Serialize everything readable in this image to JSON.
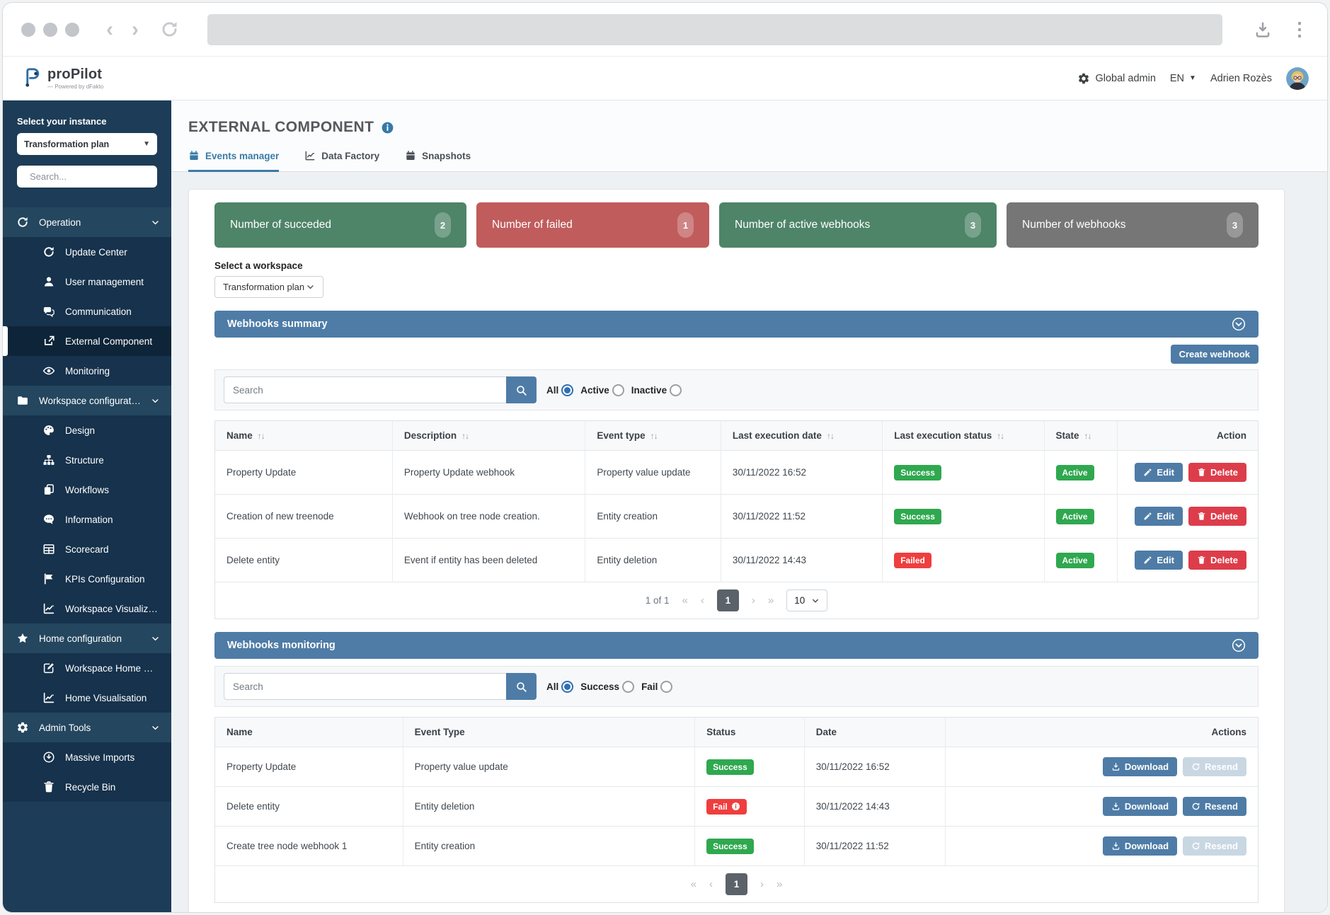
{
  "header": {
    "app_name": "proPilot",
    "app_tagline": "— Powered by dFakto",
    "admin_label": "Global admin",
    "language": "EN",
    "user_name": "Adrien Rozès"
  },
  "sidebar": {
    "instance_label": "Select your instance",
    "instance_value": "Transformation plan",
    "search_placeholder": "Search...",
    "menu": [
      {
        "label": "Operation",
        "icon": "refresh",
        "type": "section"
      },
      {
        "label": "Update Center",
        "icon": "refresh",
        "type": "item"
      },
      {
        "label": "User management",
        "icon": "user",
        "type": "item"
      },
      {
        "label": "Communication",
        "icon": "chat",
        "type": "item"
      },
      {
        "label": "External Component",
        "icon": "share",
        "type": "item",
        "active": true
      },
      {
        "label": "Monitoring",
        "icon": "eye",
        "type": "item"
      },
      {
        "label": "Workspace configuration",
        "icon": "folder",
        "type": "section"
      },
      {
        "label": "Design",
        "icon": "palette",
        "type": "item"
      },
      {
        "label": "Structure",
        "icon": "sitemap",
        "type": "item"
      },
      {
        "label": "Workflows",
        "icon": "copy",
        "type": "item"
      },
      {
        "label": "Information",
        "icon": "comment",
        "type": "item"
      },
      {
        "label": "Scorecard",
        "icon": "table",
        "type": "item"
      },
      {
        "label": "KPIs Configuration",
        "icon": "flag",
        "type": "item"
      },
      {
        "label": "Workspace Visualizat...",
        "icon": "chart",
        "type": "item"
      },
      {
        "label": "Home configuration",
        "icon": "star",
        "type": "section"
      },
      {
        "label": "Workspace Home Co...",
        "icon": "editsq",
        "type": "item"
      },
      {
        "label": "Home Visualisation",
        "icon": "chart",
        "type": "item"
      },
      {
        "label": "Admin Tools",
        "icon": "gear",
        "type": "section"
      },
      {
        "label": "Massive Imports",
        "icon": "dlcircle",
        "type": "item"
      },
      {
        "label": "Recycle Bin",
        "icon": "trash",
        "type": "item"
      }
    ]
  },
  "main": {
    "page_title": "EXTERNAL COMPONENT",
    "tabs": [
      {
        "label": "Events manager",
        "icon": "calendar",
        "active": true
      },
      {
        "label": "Data Factory",
        "icon": "chart",
        "active": false
      },
      {
        "label": "Snapshots",
        "icon": "calendar",
        "active": false
      }
    ],
    "stats": [
      {
        "label": "Number of succeded",
        "value": "2",
        "color": "#4e8468",
        "badge_color": "#78a28c"
      },
      {
        "label": "Number of failed",
        "value": "1",
        "color": "#c05c5c",
        "badge_color": "#cf8585"
      },
      {
        "label": "Number of active webhooks",
        "value": "3",
        "color": "#4e8468",
        "badge_color": "#78a28c"
      },
      {
        "label": "Number of webhooks",
        "value": "3",
        "color": "#767676",
        "badge_color": "#989898"
      }
    ],
    "workspace_label": "Select a workspace",
    "workspace_value": "Transformation plan",
    "summary": {
      "title": "Webhooks summary",
      "create_label": "Create webhook",
      "search_placeholder": "Search",
      "filters": [
        {
          "label": "All",
          "checked": true
        },
        {
          "label": "Active",
          "checked": false
        },
        {
          "label": "Inactive",
          "checked": false
        }
      ],
      "columns": [
        "Name",
        "Description",
        "Event type",
        "Last execution date",
        "Last execution status",
        "State",
        "Action"
      ],
      "rows": [
        {
          "name": "Property Update",
          "description": "Property Update webhook",
          "event_type": "Property value update",
          "last_exec_date": "30/11/2022 16:52",
          "last_exec_status": "Success",
          "state": "Active"
        },
        {
          "name": "Creation of new treenode",
          "description": "Webhook on tree node creation.",
          "event_type": "Entity creation",
          "last_exec_date": "30/11/2022 11:52",
          "last_exec_status": "Success",
          "state": "Active"
        },
        {
          "name": "Delete entity",
          "description": "Event if entity has been deleted",
          "event_type": "Entity deletion",
          "last_exec_date": "30/11/2022 14:43",
          "last_exec_status": "Failed",
          "state": "Active"
        }
      ],
      "actions": {
        "edit": "Edit",
        "delete": "Delete"
      },
      "pagination": {
        "info": "1 of 1",
        "page": "1",
        "page_size": "10"
      }
    },
    "monitoring": {
      "title": "Webhooks monitoring",
      "search_placeholder": "Search",
      "filters": [
        {
          "label": "All",
          "checked": true
        },
        {
          "label": "Success",
          "checked": false
        },
        {
          "label": "Fail",
          "checked": false
        }
      ],
      "columns": [
        "Name",
        "Event Type",
        "Status",
        "Date",
        "Actions"
      ],
      "rows": [
        {
          "name": "Property Update",
          "event_type": "Property value update",
          "status": "Success",
          "date": "30/11/2022 16:52",
          "resend_enabled": false
        },
        {
          "name": "Delete entity",
          "event_type": "Entity deletion",
          "status": "Fail",
          "date": "30/11/2022 14:43",
          "resend_enabled": true
        },
        {
          "name": "Create tree node webhook 1",
          "event_type": "Entity creation",
          "status": "Success",
          "date": "30/11/2022 11:52",
          "resend_enabled": false
        }
      ],
      "actions": {
        "download": "Download",
        "resend": "Resend"
      },
      "pagination": {
        "page": "1"
      }
    }
  }
}
